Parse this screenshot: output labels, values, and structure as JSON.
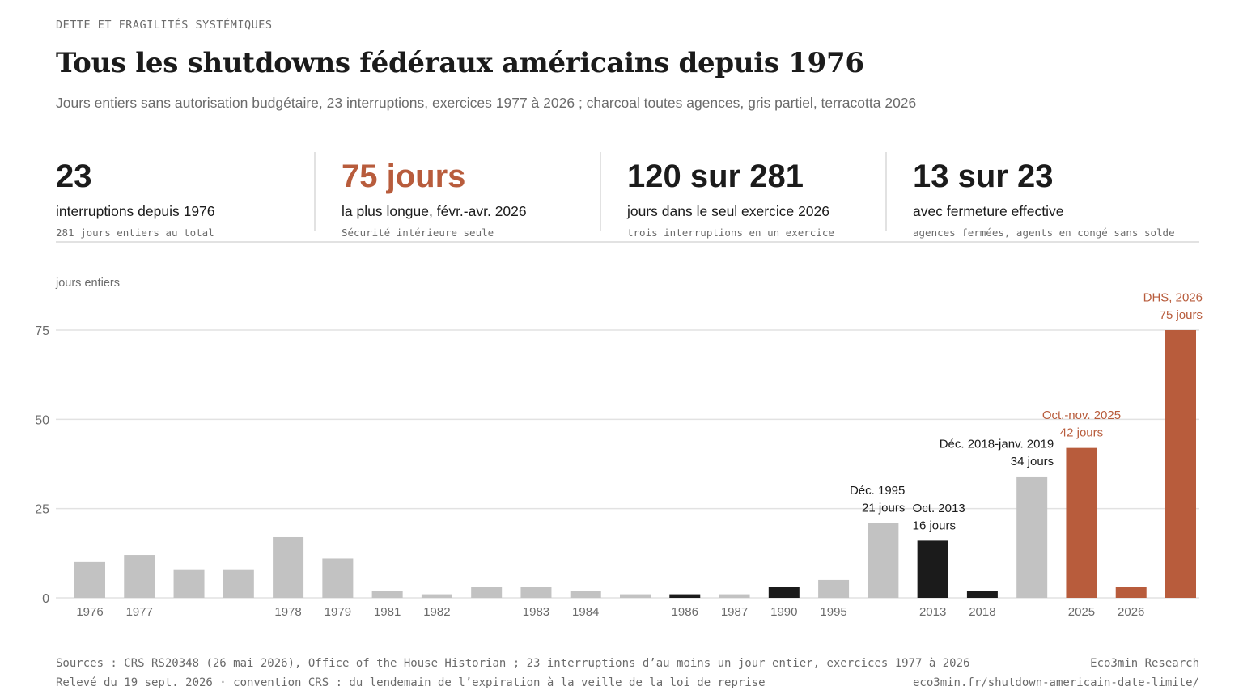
{
  "header": {
    "kicker": "DETTE ET FRAGILITÉS SYSTÉMIQUES",
    "title": "Tous les shutdowns fédéraux américains depuis 1976",
    "subtitle": "Jours entiers sans autorisation budgétaire, 23 interruptions, exercices 1977 à 2026 ; charcoal toutes agences, gris partiel, terracotta 2026"
  },
  "kpis": [
    {
      "value": "23",
      "label": "interruptions depuis 1976",
      "note": "281 jours entiers au total"
    },
    {
      "value": "75 jours",
      "label": "la plus longue, févr.-avr. 2026",
      "note": "Sécurité intérieure seule"
    },
    {
      "value": "120 sur 281",
      "label": "jours dans le seul exercice 2026",
      "note": "trois interruptions en un exercice"
    },
    {
      "value": "13 sur 23",
      "label": "avec fermeture effective",
      "note": "agences fermées, agents en congé sans solde"
    }
  ],
  "colors": {
    "partial": "#c2c2c2",
    "full": "#1b1b1b",
    "accent": "#b85c3c",
    "grid": "#e2e2e2",
    "muted": "#6b6b6b"
  },
  "chart_data": {
    "type": "bar",
    "ylabel": "jours entiers",
    "ylim": [
      0,
      75
    ],
    "yticks": [
      0,
      25,
      50,
      75
    ],
    "grid": true,
    "bars": [
      {
        "label": "1976",
        "value": 10,
        "kind": "partial"
      },
      {
        "label": "1977",
        "value": 12,
        "kind": "partial"
      },
      {
        "label": "",
        "value": 8,
        "kind": "partial"
      },
      {
        "label": "",
        "value": 8,
        "kind": "partial"
      },
      {
        "label": "1978",
        "value": 17,
        "kind": "partial"
      },
      {
        "label": "1979",
        "value": 11,
        "kind": "partial"
      },
      {
        "label": "1981",
        "value": 2,
        "kind": "partial"
      },
      {
        "label": "1982",
        "value": 1,
        "kind": "partial"
      },
      {
        "label": "",
        "value": 3,
        "kind": "partial"
      },
      {
        "label": "1983",
        "value": 3,
        "kind": "partial"
      },
      {
        "label": "1984",
        "value": 2,
        "kind": "partial"
      },
      {
        "label": "",
        "value": 1,
        "kind": "partial"
      },
      {
        "label": "1986",
        "value": 1,
        "kind": "full"
      },
      {
        "label": "1987",
        "value": 1,
        "kind": "partial"
      },
      {
        "label": "1990",
        "value": 3,
        "kind": "full"
      },
      {
        "label": "1995",
        "value": 5,
        "kind": "partial"
      },
      {
        "label": "",
        "value": 21,
        "kind": "partial",
        "annotation": [
          "Déc. 1995",
          "21 jours"
        ],
        "anchor": "end"
      },
      {
        "label": "2013",
        "value": 16,
        "kind": "full",
        "annotation": [
          "Oct. 2013",
          "16 jours"
        ],
        "anchor": "start"
      },
      {
        "label": "2018",
        "value": 2,
        "kind": "full"
      },
      {
        "label": "",
        "value": 34,
        "kind": "partial",
        "annotation": [
          "Déc. 2018-janv. 2019",
          "34 jours"
        ],
        "anchor": "end"
      },
      {
        "label": "2025",
        "value": 42,
        "kind": "accent",
        "annotation": [
          "Oct.-nov. 2025",
          "42 jours"
        ],
        "anchor": "middle"
      },
      {
        "label": "2026",
        "value": 3,
        "kind": "accent"
      },
      {
        "label": "",
        "value": 75,
        "kind": "accent",
        "annotation": [
          "DHS, 2026",
          "75 jours"
        ],
        "anchor": "end"
      }
    ]
  },
  "footer": {
    "sources": "Sources : CRS RS20348 (26 mai 2026), Office of the House Historian ; 23 interruptions d’au moins un jour entier, exercices 1977 à 2026",
    "publisher": "Eco3min Research",
    "date_line": "Relevé du 19 sept. 2026 · convention CRS : du lendemain de l’expiration à la veille de la loi de reprise",
    "url": "eco3min.fr/shutdown-americain-date-limite/"
  }
}
